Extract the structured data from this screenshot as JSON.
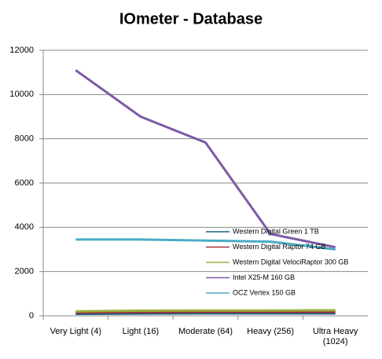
{
  "chart_data": {
    "type": "line",
    "title": "IOmeter - Database",
    "categories": [
      "Very Light (4)",
      "Light (16)",
      "Moderate (64)",
      "Heavy (256)",
      "Ultra Heavy (1024)"
    ],
    "series": [
      {
        "name": "Western Digital Green 1 TB",
        "color": "#1f5f7f",
        "values": [
          90,
          100,
          110,
          110,
          110
        ]
      },
      {
        "name": "Western Digital Raptor 74 GB",
        "color": "#a0303a",
        "values": [
          150,
          170,
          180,
          180,
          180
        ]
      },
      {
        "name": "Western Digital VelociRaptor 300 GB",
        "color": "#9baf3c",
        "values": [
          200,
          230,
          240,
          240,
          250
        ]
      },
      {
        "name": "Intel X25-M 160 GB",
        "color": "#7b5aa6",
        "values": [
          11100,
          9000,
          7830,
          3700,
          3100
        ]
      },
      {
        "name": "OCZ Vertex 150 GB",
        "color": "#4bacc6",
        "values": [
          3450,
          3450,
          3400,
          3350,
          3000
        ]
      }
    ],
    "ylim": [
      0,
      12000
    ],
    "yticks": [
      0,
      2000,
      4000,
      6000,
      8000,
      10000,
      12000
    ],
    "grid": true
  }
}
